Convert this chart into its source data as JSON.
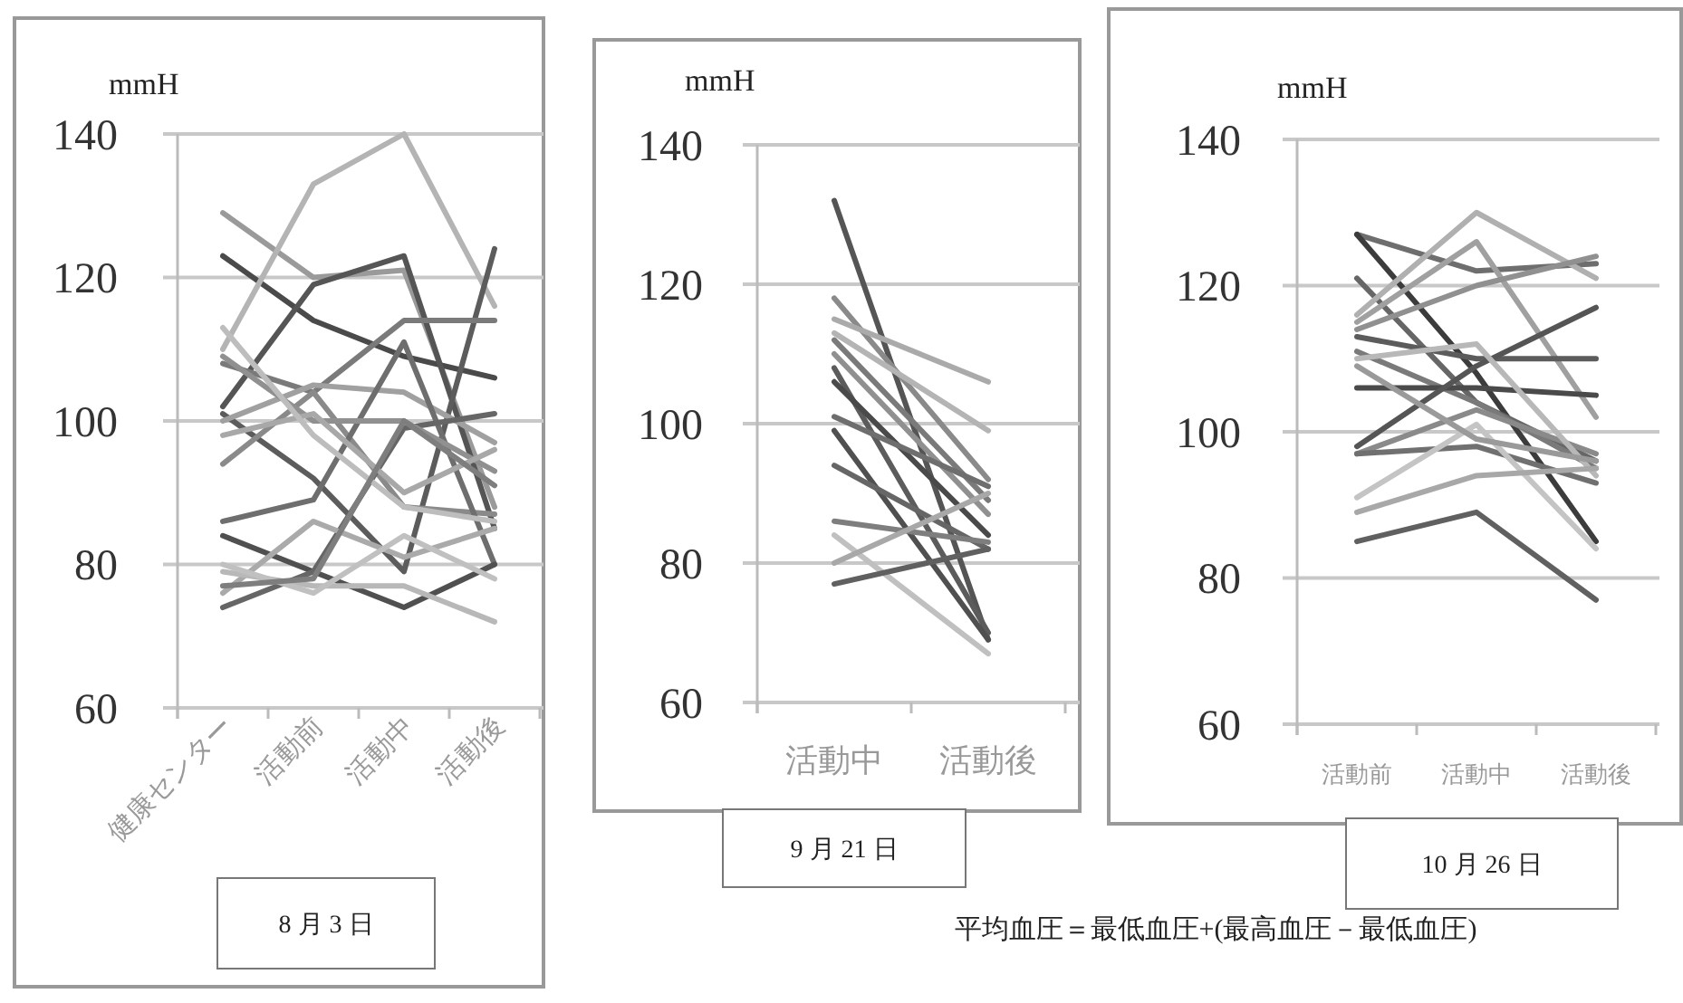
{
  "chart_data": [
    {
      "type": "line",
      "title": "8 月 3 日",
      "ylabel": "mmH",
      "categories": [
        "健康センター",
        "活動前",
        "活動中",
        "活動後"
      ],
      "ylim": [
        60,
        140
      ],
      "yticks": [
        60,
        80,
        100,
        120,
        140
      ],
      "grid": "y",
      "series": [
        {
          "color": "#9a9a9a",
          "values": [
            129,
            120,
            121,
            88
          ]
        },
        {
          "color": "#4a4a4a",
          "values": [
            123,
            114,
            109,
            106
          ]
        },
        {
          "color": "#b4b4b4",
          "values": [
            110,
            133,
            140,
            116
          ]
        },
        {
          "color": "#555555",
          "values": [
            102,
            119,
            123,
            85
          ]
        },
        {
          "color": "#5c5c5c",
          "values": [
            101,
            92,
            79,
            124
          ]
        },
        {
          "color": "#7a7a7a",
          "values": [
            108,
            104,
            114,
            114
          ]
        },
        {
          "color": "#a0a0a0",
          "values": [
            100,
            105,
            104,
            97
          ]
        },
        {
          "color": "#8a8a8a",
          "values": [
            94,
            104,
            88,
            87
          ]
        },
        {
          "color": "#6e6e6e",
          "values": [
            86,
            89,
            111,
            80
          ]
        },
        {
          "color": "#505050",
          "values": [
            84,
            79,
            74,
            80
          ]
        },
        {
          "color": "#666666",
          "values": [
            74,
            79,
            99,
            101
          ]
        },
        {
          "color": "#aaaaaa",
          "values": [
            76,
            86,
            81,
            85
          ]
        },
        {
          "color": "#b8b8b8",
          "values": [
            79,
            77,
            77,
            72
          ]
        },
        {
          "color": "#c0c0c0",
          "values": [
            80,
            76,
            84,
            78
          ]
        },
        {
          "color": "#909090",
          "values": [
            109,
            100,
            100,
            93
          ]
        },
        {
          "color": "#a8a8a8",
          "values": [
            98,
            101,
            90,
            96
          ]
        },
        {
          "color": "#bdbdbd",
          "values": [
            113,
            98,
            88,
            86
          ]
        },
        {
          "color": "#7e7e7e",
          "values": [
            77,
            78,
            100,
            91
          ]
        }
      ]
    },
    {
      "type": "line",
      "title": "9 月 21 日",
      "ylabel": "mmH",
      "categories": [
        "活動中",
        "活動後"
      ],
      "ylim": [
        60,
        140
      ],
      "yticks": [
        60,
        80,
        100,
        120,
        140
      ],
      "grid": "y",
      "series": [
        {
          "color": "#555555",
          "values": [
            132,
            69
          ]
        },
        {
          "color": "#8a8a8a",
          "values": [
            118,
            92
          ]
        },
        {
          "color": "#aaaaaa",
          "values": [
            115,
            106
          ]
        },
        {
          "color": "#b4b4b4",
          "values": [
            113,
            99
          ]
        },
        {
          "color": "#7a7a7a",
          "values": [
            112,
            89
          ]
        },
        {
          "color": "#909090",
          "values": [
            110,
            87
          ]
        },
        {
          "color": "#5c5c5c",
          "values": [
            108,
            70
          ]
        },
        {
          "color": "#4a4a4a",
          "values": [
            106,
            84
          ]
        },
        {
          "color": "#6e6e6e",
          "values": [
            101,
            91
          ]
        },
        {
          "color": "#505050",
          "values": [
            99,
            69
          ]
        },
        {
          "color": "#666666",
          "values": [
            94,
            82
          ]
        },
        {
          "color": "#7e7e7e",
          "values": [
            86,
            83
          ]
        },
        {
          "color": "#c0c0c0",
          "values": [
            84,
            67
          ]
        },
        {
          "color": "#a8a8a8",
          "values": [
            80,
            90
          ]
        },
        {
          "color": "#606060",
          "values": [
            77,
            82
          ]
        }
      ]
    },
    {
      "type": "line",
      "title": "10 月 26 日",
      "ylabel": "mmH",
      "categories": [
        "活動前",
        "活動中",
        "活動後"
      ],
      "ylim": [
        60,
        140
      ],
      "yticks": [
        60,
        80,
        100,
        120,
        140
      ],
      "grid": "y",
      "annotations": [
        "平均血圧＝最低血圧+(最高血圧－最低血圧)"
      ],
      "series": [
        {
          "color": "#6e6e6e",
          "values": [
            127,
            122,
            123
          ]
        },
        {
          "color": "#3c3c3c",
          "values": [
            127,
            108,
            85
          ]
        },
        {
          "color": "#666666",
          "values": [
            121,
            104,
            96
          ]
        },
        {
          "color": "#b0b0b0",
          "values": [
            116,
            130,
            121
          ]
        },
        {
          "color": "#a0a0a0",
          "values": [
            115,
            126,
            102
          ]
        },
        {
          "color": "#909090",
          "values": [
            114,
            120,
            124
          ]
        },
        {
          "color": "#5c5c5c",
          "values": [
            113,
            110,
            110
          ]
        },
        {
          "color": "#7a7a7a",
          "values": [
            111,
            104,
            95
          ]
        },
        {
          "color": "#4a4a4a",
          "values": [
            106,
            106,
            105
          ]
        },
        {
          "color": "#555555",
          "values": [
            98,
            109,
            117
          ]
        },
        {
          "color": "#8a8a8a",
          "values": [
            97,
            103,
            97
          ]
        },
        {
          "color": "#b8b8b8",
          "values": [
            110,
            112,
            94
          ]
        },
        {
          "color": "#707070",
          "values": [
            97,
            98,
            93
          ]
        },
        {
          "color": "#c4c4c4",
          "values": [
            91,
            101,
            84
          ]
        },
        {
          "color": "#a8a8a8",
          "values": [
            89,
            94,
            95
          ]
        },
        {
          "color": "#606060",
          "values": [
            85,
            89,
            77
          ]
        },
        {
          "color": "#9a9a9a",
          "values": [
            109,
            99,
            96
          ]
        }
      ]
    }
  ]
}
